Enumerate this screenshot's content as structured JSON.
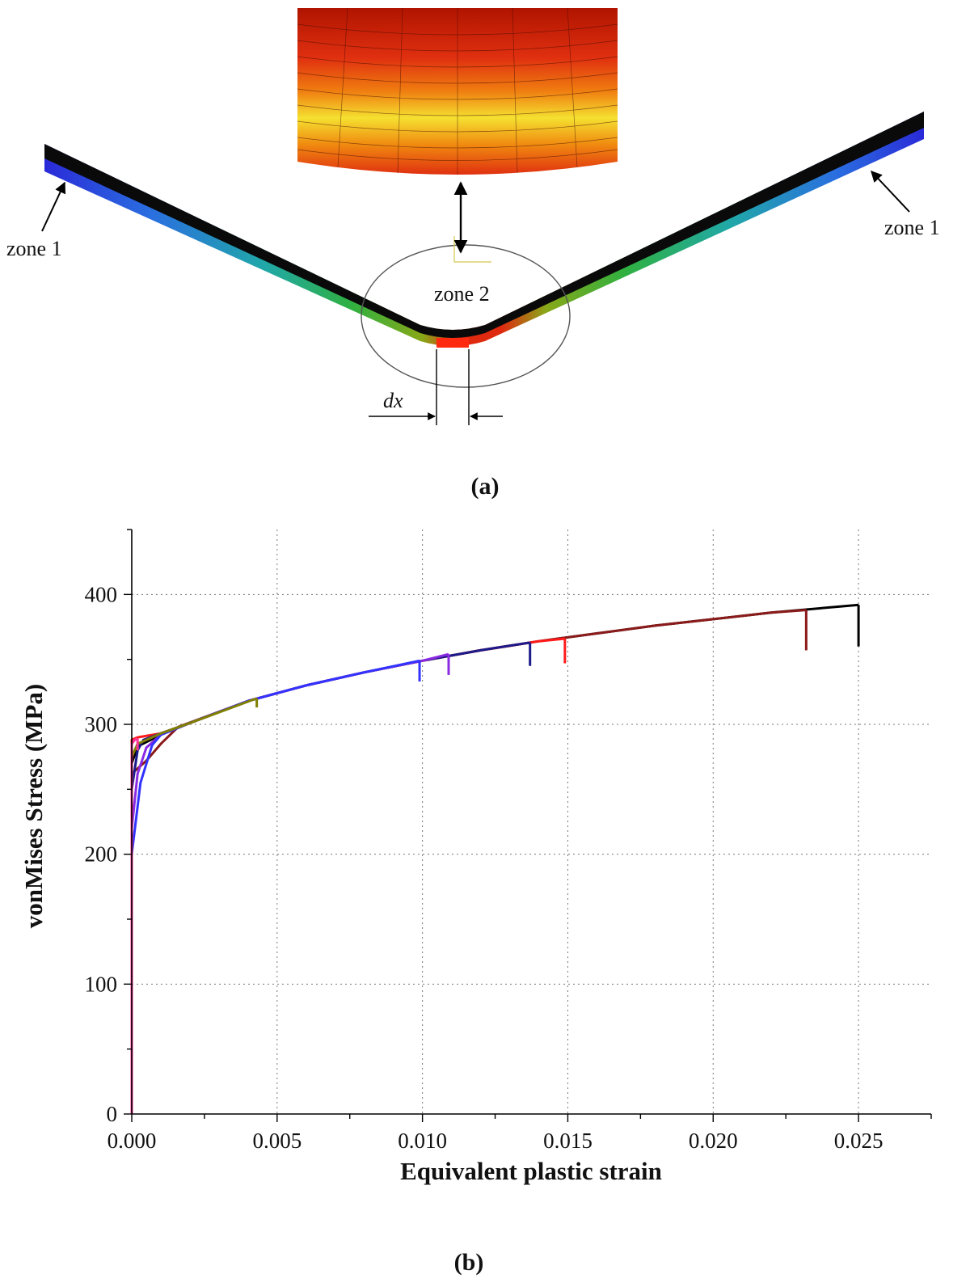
{
  "panel_a": {
    "zone_1_left": "zone 1",
    "zone_1_right": "zone 1",
    "zone_2": "zone 2",
    "dx": "dx",
    "caption": "(a)"
  },
  "panel_b": {
    "caption": "(b)"
  },
  "chart_data": {
    "type": "line",
    "xlabel": "Equivalent plastic strain",
    "ylabel": "vonMises Stress (MPa)",
    "xlim": [
      0,
      0.0275
    ],
    "ylim": [
      0,
      450
    ],
    "xticks": [
      0,
      0.005,
      0.01,
      0.015,
      0.02,
      0.025
    ],
    "xtick_labels": [
      "0.000",
      "0.005",
      "0.010",
      "0.015",
      "0.020",
      "0.025"
    ],
    "yticks": [
      0,
      100,
      200,
      300,
      400
    ],
    "ytick_labels": [
      "0",
      "100",
      "200",
      "300",
      "400"
    ],
    "grid": true,
    "series": [
      {
        "color": "#000000",
        "end_strain": 0.025,
        "drop_to": 360,
        "x": [
          0,
          0,
          0.0002,
          0.001,
          0.002,
          0.004,
          0.006,
          0.008,
          0.01,
          0.012,
          0.014,
          0.016,
          0.018,
          0.02,
          0.022,
          0.024,
          0.025
        ],
        "y": [
          0,
          270,
          283,
          292,
          301,
          318,
          330,
          340,
          349,
          357,
          364,
          370,
          376,
          381,
          386,
          390,
          392
        ]
      },
      {
        "color": "#8b1a1a",
        "end_strain": 0.0232,
        "drop_to": 357,
        "x": [
          0,
          0,
          0.0005,
          0.001,
          0.0016,
          0.004,
          0.006,
          0.008,
          0.01,
          0.012,
          0.014,
          0.016,
          0.018,
          0.02,
          0.022,
          0.0232
        ],
        "y": [
          0,
          262,
          272,
          285,
          298,
          318,
          330,
          340,
          349,
          357,
          364,
          370,
          376,
          381,
          386,
          388
        ]
      },
      {
        "color": "#ff1a1a",
        "end_strain": 0.0149,
        "drop_to": 347,
        "x": [
          0,
          0,
          0.0002,
          0.001,
          0.002,
          0.004,
          0.006,
          0.008,
          0.01,
          0.012,
          0.014,
          0.0149
        ],
        "y": [
          0,
          288,
          290,
          293,
          301,
          318,
          330,
          340,
          349,
          357,
          364,
          366
        ]
      },
      {
        "color": "#1a1a8b",
        "end_strain": 0.0137,
        "drop_to": 345,
        "x": [
          0,
          0,
          0.0002,
          0.0004,
          0.001,
          0.002,
          0.004,
          0.006,
          0.008,
          0.01,
          0.012,
          0.0137
        ],
        "y": [
          0,
          250,
          280,
          288,
          293,
          301,
          318,
          330,
          340,
          349,
          357,
          363
        ]
      },
      {
        "color": "#8a2be2",
        "end_strain": 0.0109,
        "drop_to": 338,
        "x": [
          0,
          0,
          0.0002,
          0.0005,
          0.001,
          0.002,
          0.004,
          0.006,
          0.008,
          0.01,
          0.0109
        ],
        "y": [
          0,
          220,
          262,
          282,
          292,
          301,
          318,
          330,
          340,
          349,
          354
        ]
      },
      {
        "color": "#3333ff",
        "end_strain": 0.0099,
        "drop_to": 333,
        "x": [
          0,
          0,
          0.0003,
          0.0007,
          0.001,
          0.002,
          0.004,
          0.006,
          0.008,
          0.0099
        ],
        "y": [
          0,
          200,
          255,
          284,
          292,
          301,
          318,
          330,
          340,
          349
        ]
      },
      {
        "color": "#808000",
        "end_strain": 0.0043,
        "drop_to": 313,
        "x": [
          0,
          0,
          0.0002,
          0.001,
          0.002,
          0.0043
        ],
        "y": [
          0,
          275,
          285,
          293,
          301,
          320
        ]
      },
      {
        "color": "#ff3399",
        "end_strain": 0.0002,
        "drop_to": 280,
        "x": [
          0,
          0,
          0.0001,
          0.0002
        ],
        "y": [
          0,
          285,
          288,
          289
        ]
      }
    ]
  }
}
